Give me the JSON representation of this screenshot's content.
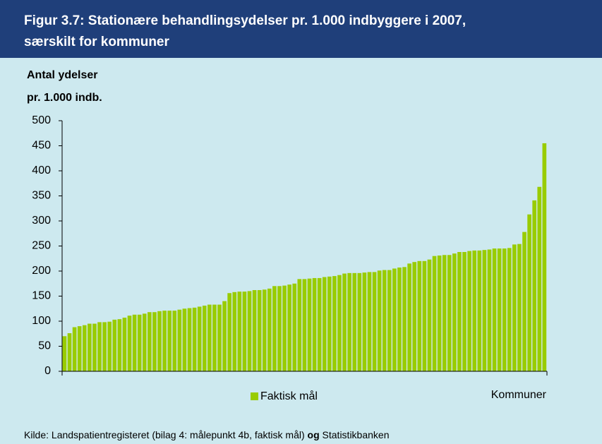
{
  "chart_data": {
    "type": "bar",
    "title": [
      "Figur 3.7: Stationære behandlingsydelser pr. 1.000 indbyggere i 2007,",
      "særskilt for kommuner"
    ],
    "y_label": [
      "Antal ydelser",
      "pr. 1.000 indb."
    ],
    "x_label": "Kommuner",
    "source": [
      "Kilde: Landspatientregisteret (bilag 4: målepunkt 4b, faktisk mål)",
      "og",
      "Statistikbanken"
    ],
    "series": [
      {
        "name": "Faktisk mål",
        "color": "#99cc00",
        "values": [
          70,
          76,
          88,
          90,
          92,
          95,
          95,
          98,
          98,
          99,
          103,
          104,
          107,
          111,
          113,
          113,
          115,
          118,
          118,
          120,
          121,
          121,
          121,
          123,
          125,
          126,
          127,
          129,
          131,
          133,
          133,
          133,
          140,
          156,
          158,
          159,
          159,
          160,
          162,
          162,
          163,
          165,
          170,
          170,
          171,
          173,
          175,
          184,
          184,
          185,
          186,
          186,
          188,
          189,
          190,
          192,
          195,
          196,
          196,
          196,
          197,
          198,
          198,
          201,
          202,
          202,
          205,
          207,
          208,
          215,
          218,
          220,
          220,
          223,
          230,
          231,
          232,
          232,
          235,
          238,
          238,
          240,
          241,
          241,
          242,
          243,
          245,
          245,
          245,
          246,
          253,
          254,
          278,
          313,
          341,
          368,
          455
        ]
      }
    ],
    "ylim": [
      0,
      500
    ],
    "yticks": [
      0,
      50,
      100,
      150,
      200,
      250,
      300,
      350,
      400,
      450,
      500
    ]
  }
}
